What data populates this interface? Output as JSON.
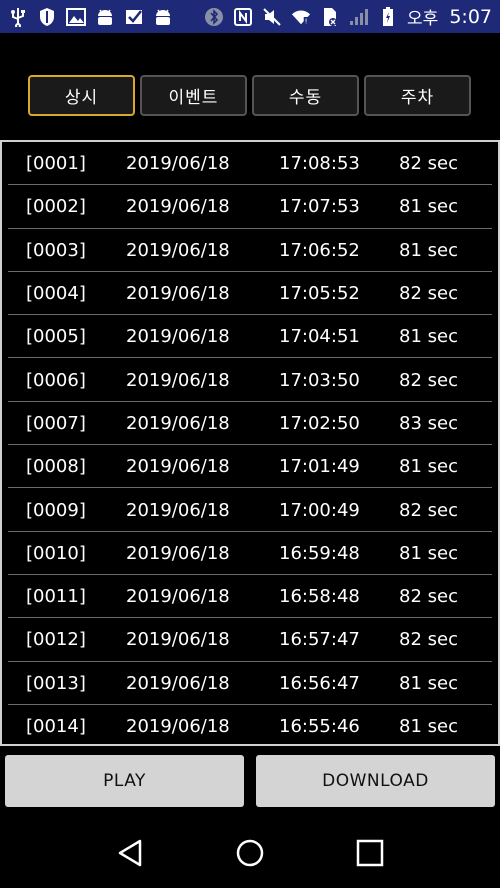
{
  "status_bar": {
    "time": "5:07",
    "ampm": "오후",
    "left_icons": [
      "usb-icon",
      "shield-icon",
      "image-icon",
      "android-icon",
      "check-icon",
      "android-icon"
    ],
    "right_icons": [
      "bluetooth-icon",
      "nfc-icon",
      "mute-icon",
      "wifi-icon",
      "sim-icon",
      "signal-icon",
      "battery-icon"
    ]
  },
  "tabs": [
    {
      "label": "상시",
      "active": true
    },
    {
      "label": "이벤트",
      "active": false
    },
    {
      "label": "수동",
      "active": false
    },
    {
      "label": "주차",
      "active": false
    }
  ],
  "records": [
    {
      "index": "[0001]",
      "date": "2019/06/18",
      "time": "17:08:53",
      "duration": "82 sec"
    },
    {
      "index": "[0002]",
      "date": "2019/06/18",
      "time": "17:07:53",
      "duration": "81 sec"
    },
    {
      "index": "[0003]",
      "date": "2019/06/18",
      "time": "17:06:52",
      "duration": "81 sec"
    },
    {
      "index": "[0004]",
      "date": "2019/06/18",
      "time": "17:05:52",
      "duration": "82 sec"
    },
    {
      "index": "[0005]",
      "date": "2019/06/18",
      "time": "17:04:51",
      "duration": "81 sec"
    },
    {
      "index": "[0006]",
      "date": "2019/06/18",
      "time": "17:03:50",
      "duration": "82 sec"
    },
    {
      "index": "[0007]",
      "date": "2019/06/18",
      "time": "17:02:50",
      "duration": "83 sec"
    },
    {
      "index": "[0008]",
      "date": "2019/06/18",
      "time": "17:01:49",
      "duration": "81 sec"
    },
    {
      "index": "[0009]",
      "date": "2019/06/18",
      "time": "17:00:49",
      "duration": "82 sec"
    },
    {
      "index": "[0010]",
      "date": "2019/06/18",
      "time": "16:59:48",
      "duration": "81 sec"
    },
    {
      "index": "[0011]",
      "date": "2019/06/18",
      "time": "16:58:48",
      "duration": "82 sec"
    },
    {
      "index": "[0012]",
      "date": "2019/06/18",
      "time": "16:57:47",
      "duration": "82 sec"
    },
    {
      "index": "[0013]",
      "date": "2019/06/18",
      "time": "16:56:47",
      "duration": "81 sec"
    },
    {
      "index": "[0014]",
      "date": "2019/06/18",
      "time": "16:55:46",
      "duration": "81 sec"
    }
  ],
  "buttons": {
    "play": "PLAY",
    "download": "DOWNLOAD"
  },
  "nav": [
    "back-icon",
    "home-icon",
    "recents-icon"
  ],
  "colors": {
    "status_bar_bg": "#1e2a78",
    "active_tab_border": "#d6a92b",
    "button_bg": "#d4d4d4"
  }
}
